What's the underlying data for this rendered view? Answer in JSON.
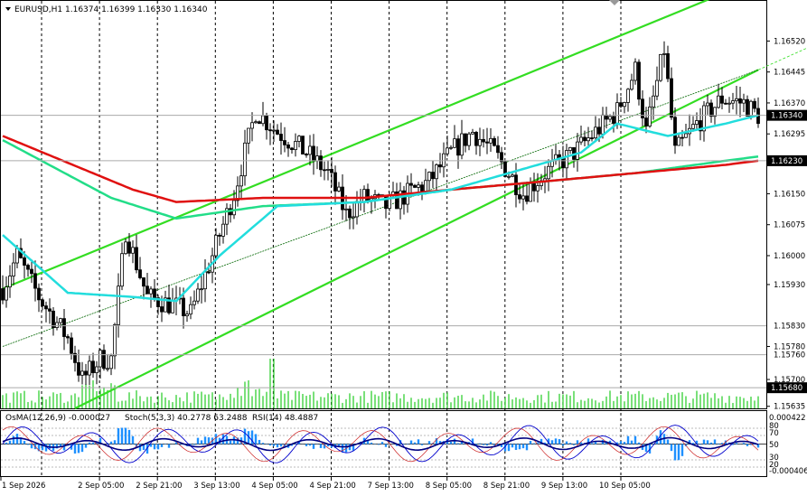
{
  "header": {
    "symbol": "EURUSD,H1",
    "ohlc": "1.16374 1.16399 1.16330 1.16340"
  },
  "subwindow": {
    "osma": "OsMA(12,26,9) -0.000027",
    "stoch": "Stoch(5,3,3) 40.2778 63.2488",
    "rsi": "RSI(14) 48.4887",
    "scale_top": "0.000422",
    "scale_bottom": "-0.000406",
    "levels": [
      "80",
      "70",
      "50",
      "30",
      "20"
    ]
  },
  "colors": {
    "ema200": "#e01010",
    "ema144": "#22dd88",
    "ema50": "#22dddd",
    "channel": "#33dd22",
    "candle": "#000000",
    "volume": "#22cc22",
    "osma": "#1e90ff",
    "rsi": "#000080",
    "stoch_main": "#0000cc",
    "stoch_signal": "#cc2222"
  },
  "chart_data": {
    "type": "candlestick",
    "symbol": "EURUSD",
    "timeframe": "H1",
    "ylim": [
      1.1563,
      1.1658
    ],
    "y_ticks": [
      "1.16520",
      "1.16445",
      "1.16370",
      "1.16295",
      "1.16150",
      "1.16075",
      "1.16000",
      "1.15930",
      "1.15780",
      "1.15700",
      "1.15635"
    ],
    "x_ticks": [
      "1 Sep 2026",
      "2 Sep 05:00",
      "2 Sep 21:00",
      "3 Sep 13:00",
      "4 Sep 05:00",
      "4 Sep 21:00",
      "7 Sep 13:00",
      "8 Sep 05:00",
      "8 Sep 21:00",
      "9 Sep 13:00",
      "10 Sep 05:00"
    ],
    "price_labels": [
      {
        "value": "1.16340",
        "highlight": true
      },
      {
        "value": "1.16230",
        "highlight": true
      },
      {
        "value": "1.15830",
        "highlight": false
      },
      {
        "value": "1.15760",
        "highlight": false
      },
      {
        "value": "1.15680",
        "highlight": true
      }
    ],
    "anchors": [
      [
        0,
        1.1592
      ],
      [
        4,
        1.16
      ],
      [
        10,
        1.159
      ],
      [
        18,
        1.158
      ],
      [
        22,
        1.157
      ],
      [
        27,
        1.1575
      ],
      [
        30,
        1.1575
      ],
      [
        34,
        1.1606
      ],
      [
        40,
        1.159
      ],
      [
        47,
        1.1588
      ],
      [
        52,
        1.1586
      ],
      [
        58,
        1.16
      ],
      [
        64,
        1.1615
      ],
      [
        70,
        1.1635
      ],
      [
        76,
        1.163
      ],
      [
        84,
        1.1625
      ],
      [
        90,
        1.162
      ],
      [
        95,
        1.161
      ],
      [
        100,
        1.1614
      ],
      [
        106,
        1.1612
      ],
      [
        112,
        1.1615
      ],
      [
        118,
        1.1618
      ],
      [
        124,
        1.1625
      ],
      [
        130,
        1.163
      ],
      [
        136,
        1.1625
      ],
      [
        144,
        1.1615
      ],
      [
        150,
        1.162
      ],
      [
        158,
        1.1625
      ],
      [
        164,
        1.163
      ],
      [
        170,
        1.1635
      ],
      [
        175,
        1.1645
      ],
      [
        178,
        1.163
      ],
      [
        183,
        1.165
      ],
      [
        186,
        1.1625
      ],
      [
        192,
        1.1632
      ],
      [
        199,
        1.1638
      ],
      [
        205,
        1.1637
      ],
      [
        209,
        1.1634
      ]
    ],
    "ema50": [
      [
        0,
        1.1605
      ],
      [
        18,
        1.1591
      ],
      [
        36,
        1.159
      ],
      [
        48,
        1.1589
      ],
      [
        60,
        1.16
      ],
      [
        76,
        1.1612
      ],
      [
        100,
        1.1613
      ],
      [
        124,
        1.1616
      ],
      [
        140,
        1.162
      ],
      [
        160,
        1.1625
      ],
      [
        170,
        1.1632
      ],
      [
        184,
        1.1629
      ],
      [
        200,
        1.1632
      ],
      [
        209,
        1.1634
      ]
    ],
    "ema144": [
      [
        0,
        1.1628
      ],
      [
        30,
        1.1614
      ],
      [
        48,
        1.1609
      ],
      [
        72,
        1.1612
      ],
      [
        100,
        1.1613
      ],
      [
        124,
        1.1616
      ],
      [
        150,
        1.1618
      ],
      [
        175,
        1.162
      ],
      [
        200,
        1.1623
      ],
      [
        209,
        1.1624
      ]
    ],
    "ema200": [
      [
        0,
        1.1629
      ],
      [
        36,
        1.1616
      ],
      [
        48,
        1.1613
      ],
      [
        72,
        1.1614
      ],
      [
        100,
        1.1614
      ],
      [
        124,
        1.1616
      ],
      [
        150,
        1.1618
      ],
      [
        175,
        1.162
      ],
      [
        200,
        1.1622
      ],
      [
        209,
        1.1623
      ]
    ],
    "channel": {
      "upper": [
        [
          0,
          1.1592
        ],
        [
          209,
          1.1667
        ]
      ],
      "lower": [
        [
          20,
          1.1563
        ],
        [
          209,
          1.1645
        ]
      ],
      "middle": [
        [
          0,
          1.1578
        ],
        [
          209,
          1.1645
        ]
      ],
      "middle_ext": [
        [
          209,
          1.1645
        ],
        [
          260,
          1.1665
        ]
      ]
    }
  }
}
